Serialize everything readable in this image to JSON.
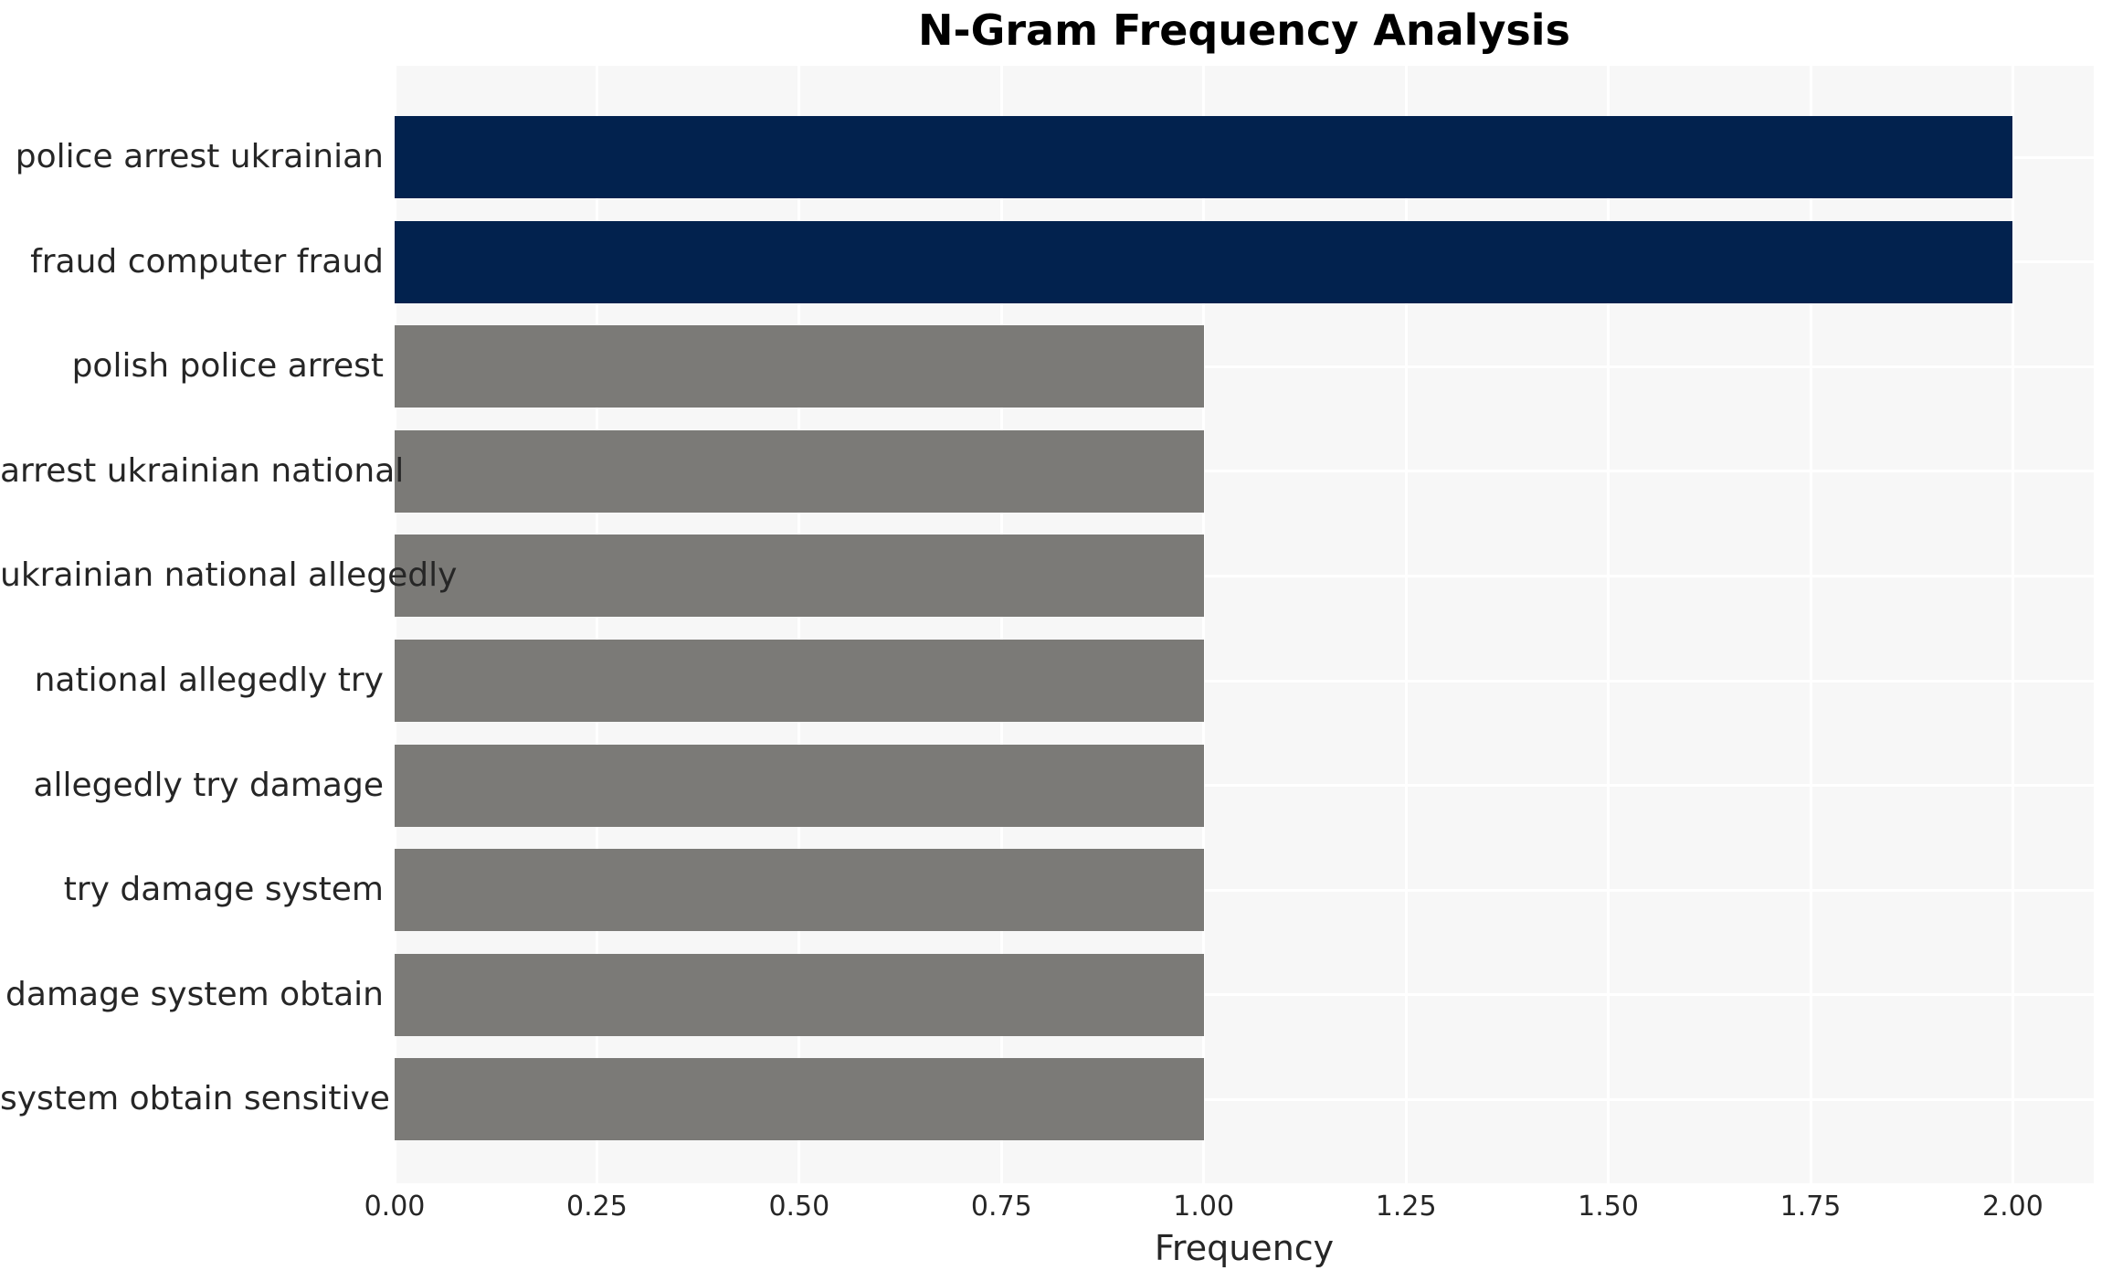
{
  "title": "N-Gram Frequency Analysis",
  "xlabel": "Frequency",
  "colors": {
    "highlight_bar": "#02224E",
    "default_bar": "#7B7A77",
    "plot_background": "#F7F7F7",
    "gridline": "#FFFFFF",
    "text": "#262626",
    "title_text": "#000000"
  },
  "chart_data": {
    "type": "bar",
    "orientation": "horizontal",
    "title": "N-Gram Frequency Analysis",
    "xlabel": "Frequency",
    "ylabel": "",
    "categories": [
      "police arrest ukrainian",
      "fraud computer fraud",
      "polish police arrest",
      "arrest ukrainian national",
      "ukrainian national allegedly",
      "national allegedly try",
      "allegedly try damage",
      "try damage system",
      "damage system obtain",
      "system obtain sensitive"
    ],
    "values": [
      2,
      2,
      1,
      1,
      1,
      1,
      1,
      1,
      1,
      1
    ],
    "bar_colors": [
      "#02224E",
      "#02224E",
      "#7B7A77",
      "#7B7A77",
      "#7B7A77",
      "#7B7A77",
      "#7B7A77",
      "#7B7A77",
      "#7B7A77",
      "#7B7A77"
    ],
    "xtick_labels": [
      "0.00",
      "0.25",
      "0.50",
      "0.75",
      "1.00",
      "1.25",
      "1.50",
      "1.75",
      "2.00"
    ],
    "xtick_values": [
      0,
      0.25,
      0.5,
      0.75,
      1.0,
      1.25,
      1.5,
      1.75,
      2.0
    ],
    "xlim": [
      0,
      2.1
    ],
    "grid": true,
    "legend": "none"
  }
}
